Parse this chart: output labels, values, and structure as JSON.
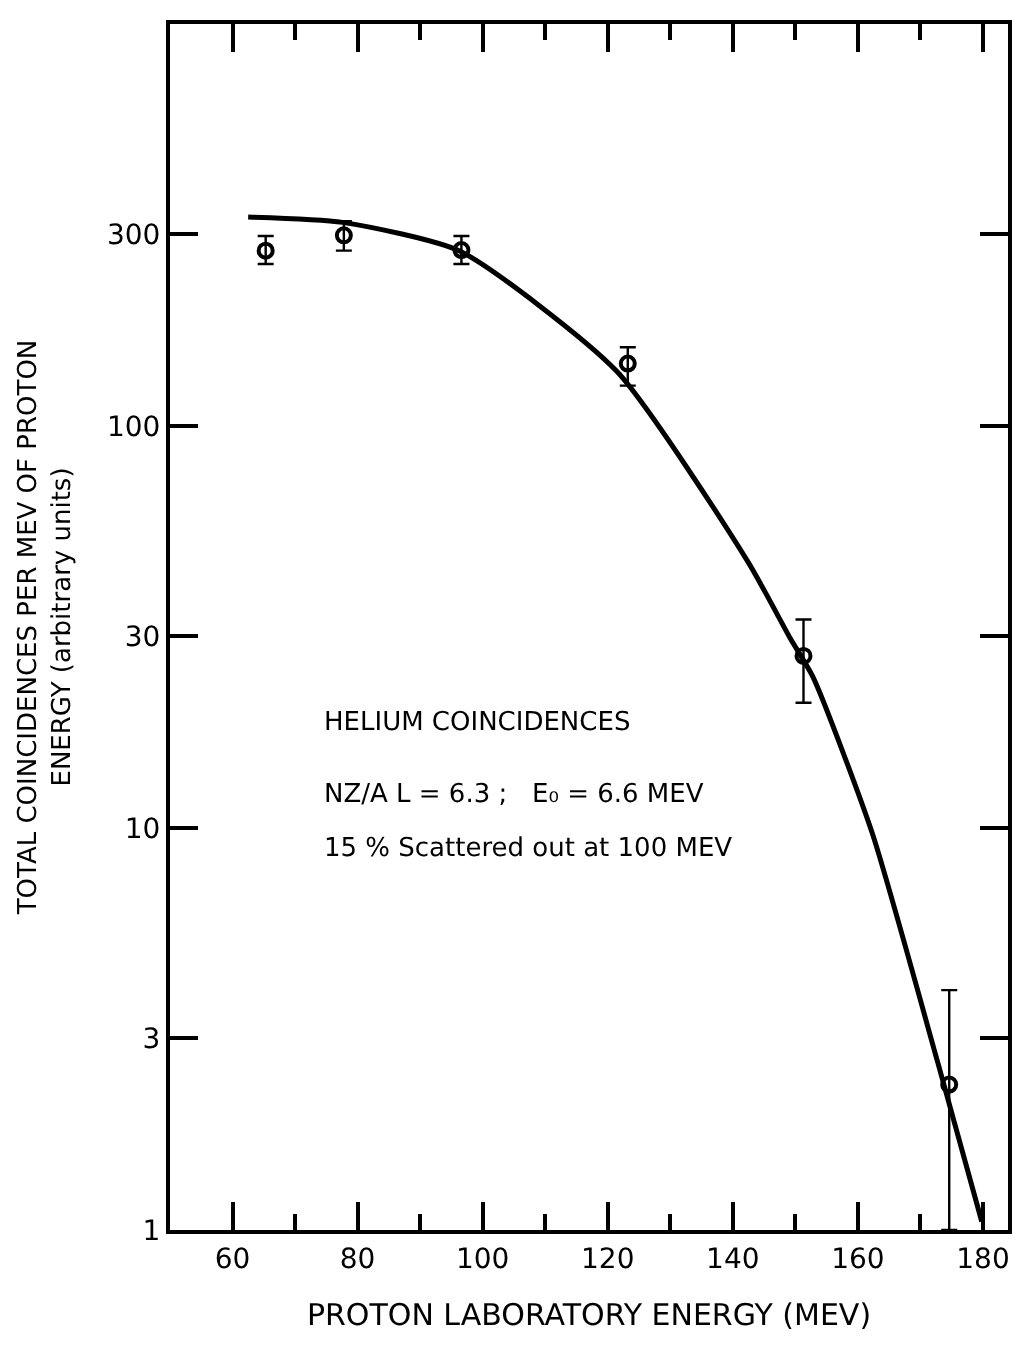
{
  "chart_data": {
    "type": "scatter",
    "xlabel": "PROTON LABORATORY ENERGY (MEV)",
    "ylabel": "TOTAL COINCIDENCES PER MEV OF PROTON\nENERGY (arbitrary units)",
    "log": "y",
    "xlim": [
      50,
      184
    ],
    "xticks": [
      60,
      80,
      100,
      120,
      140,
      160,
      180
    ],
    "ylim": [
      1,
      1000
    ],
    "yticks": [
      1,
      3,
      10,
      30,
      100,
      300
    ],
    "series": [
      {
        "marker": "circle",
        "color": "#000000",
        "x": [
          65.3,
          77.8,
          96.6,
          123.2,
          151.3,
          174.6
        ],
        "values": [
          273,
          298,
          274,
          143,
          26.8,
          2.3
        ],
        "errors": [
          [
            253,
            297
          ],
          [
            273,
            323
          ],
          [
            253,
            297
          ],
          [
            126,
            157
          ],
          [
            20.5,
            33
          ],
          [
            1,
            3.95
          ]
        ]
      },
      {
        "type": "line",
        "marker": "none",
        "color": "#000000",
        "x": [
          62.5,
          77.6,
          96.4,
          121.4,
          142.4,
          149.2,
          152.9,
          162.3,
          172.8,
          179.8
        ],
        "values": [
          331,
          321,
          272,
          137,
          46,
          29.6,
          23.6,
          9.7,
          2.6,
          1.05
        ]
      }
    ],
    "annotations": [
      "HELIUM COINCIDENCES",
      "NZ/A L = 6.3 ;   E₀ = 6.6 MEV",
      "15 % Scattered out at 100 MEV"
    ]
  }
}
